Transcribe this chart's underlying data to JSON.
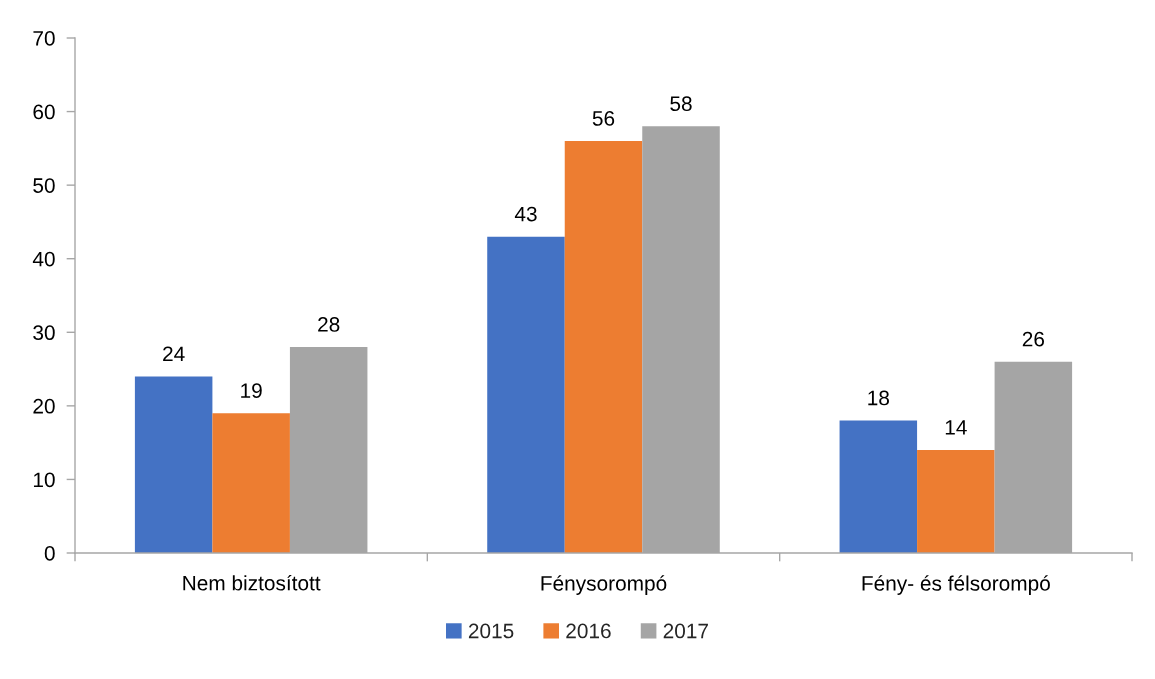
{
  "chart_data": {
    "type": "bar",
    "categories": [
      "Nem biztosított",
      "Fénysorompó",
      "Fény- és félsorompó"
    ],
    "series": [
      {
        "name": "2015",
        "color": "#4472c4",
        "values": [
          24,
          43,
          18
        ]
      },
      {
        "name": "2016",
        "color": "#ed7d31",
        "values": [
          19,
          56,
          14
        ]
      },
      {
        "name": "2017",
        "color": "#a5a5a5",
        "values": [
          28,
          58,
          26
        ]
      }
    ],
    "ylim": [
      0,
      70
    ],
    "yticks": [
      0,
      10,
      20,
      30,
      40,
      50,
      60,
      70
    ],
    "grid": false,
    "legend": "bottom",
    "data_labels": true
  }
}
